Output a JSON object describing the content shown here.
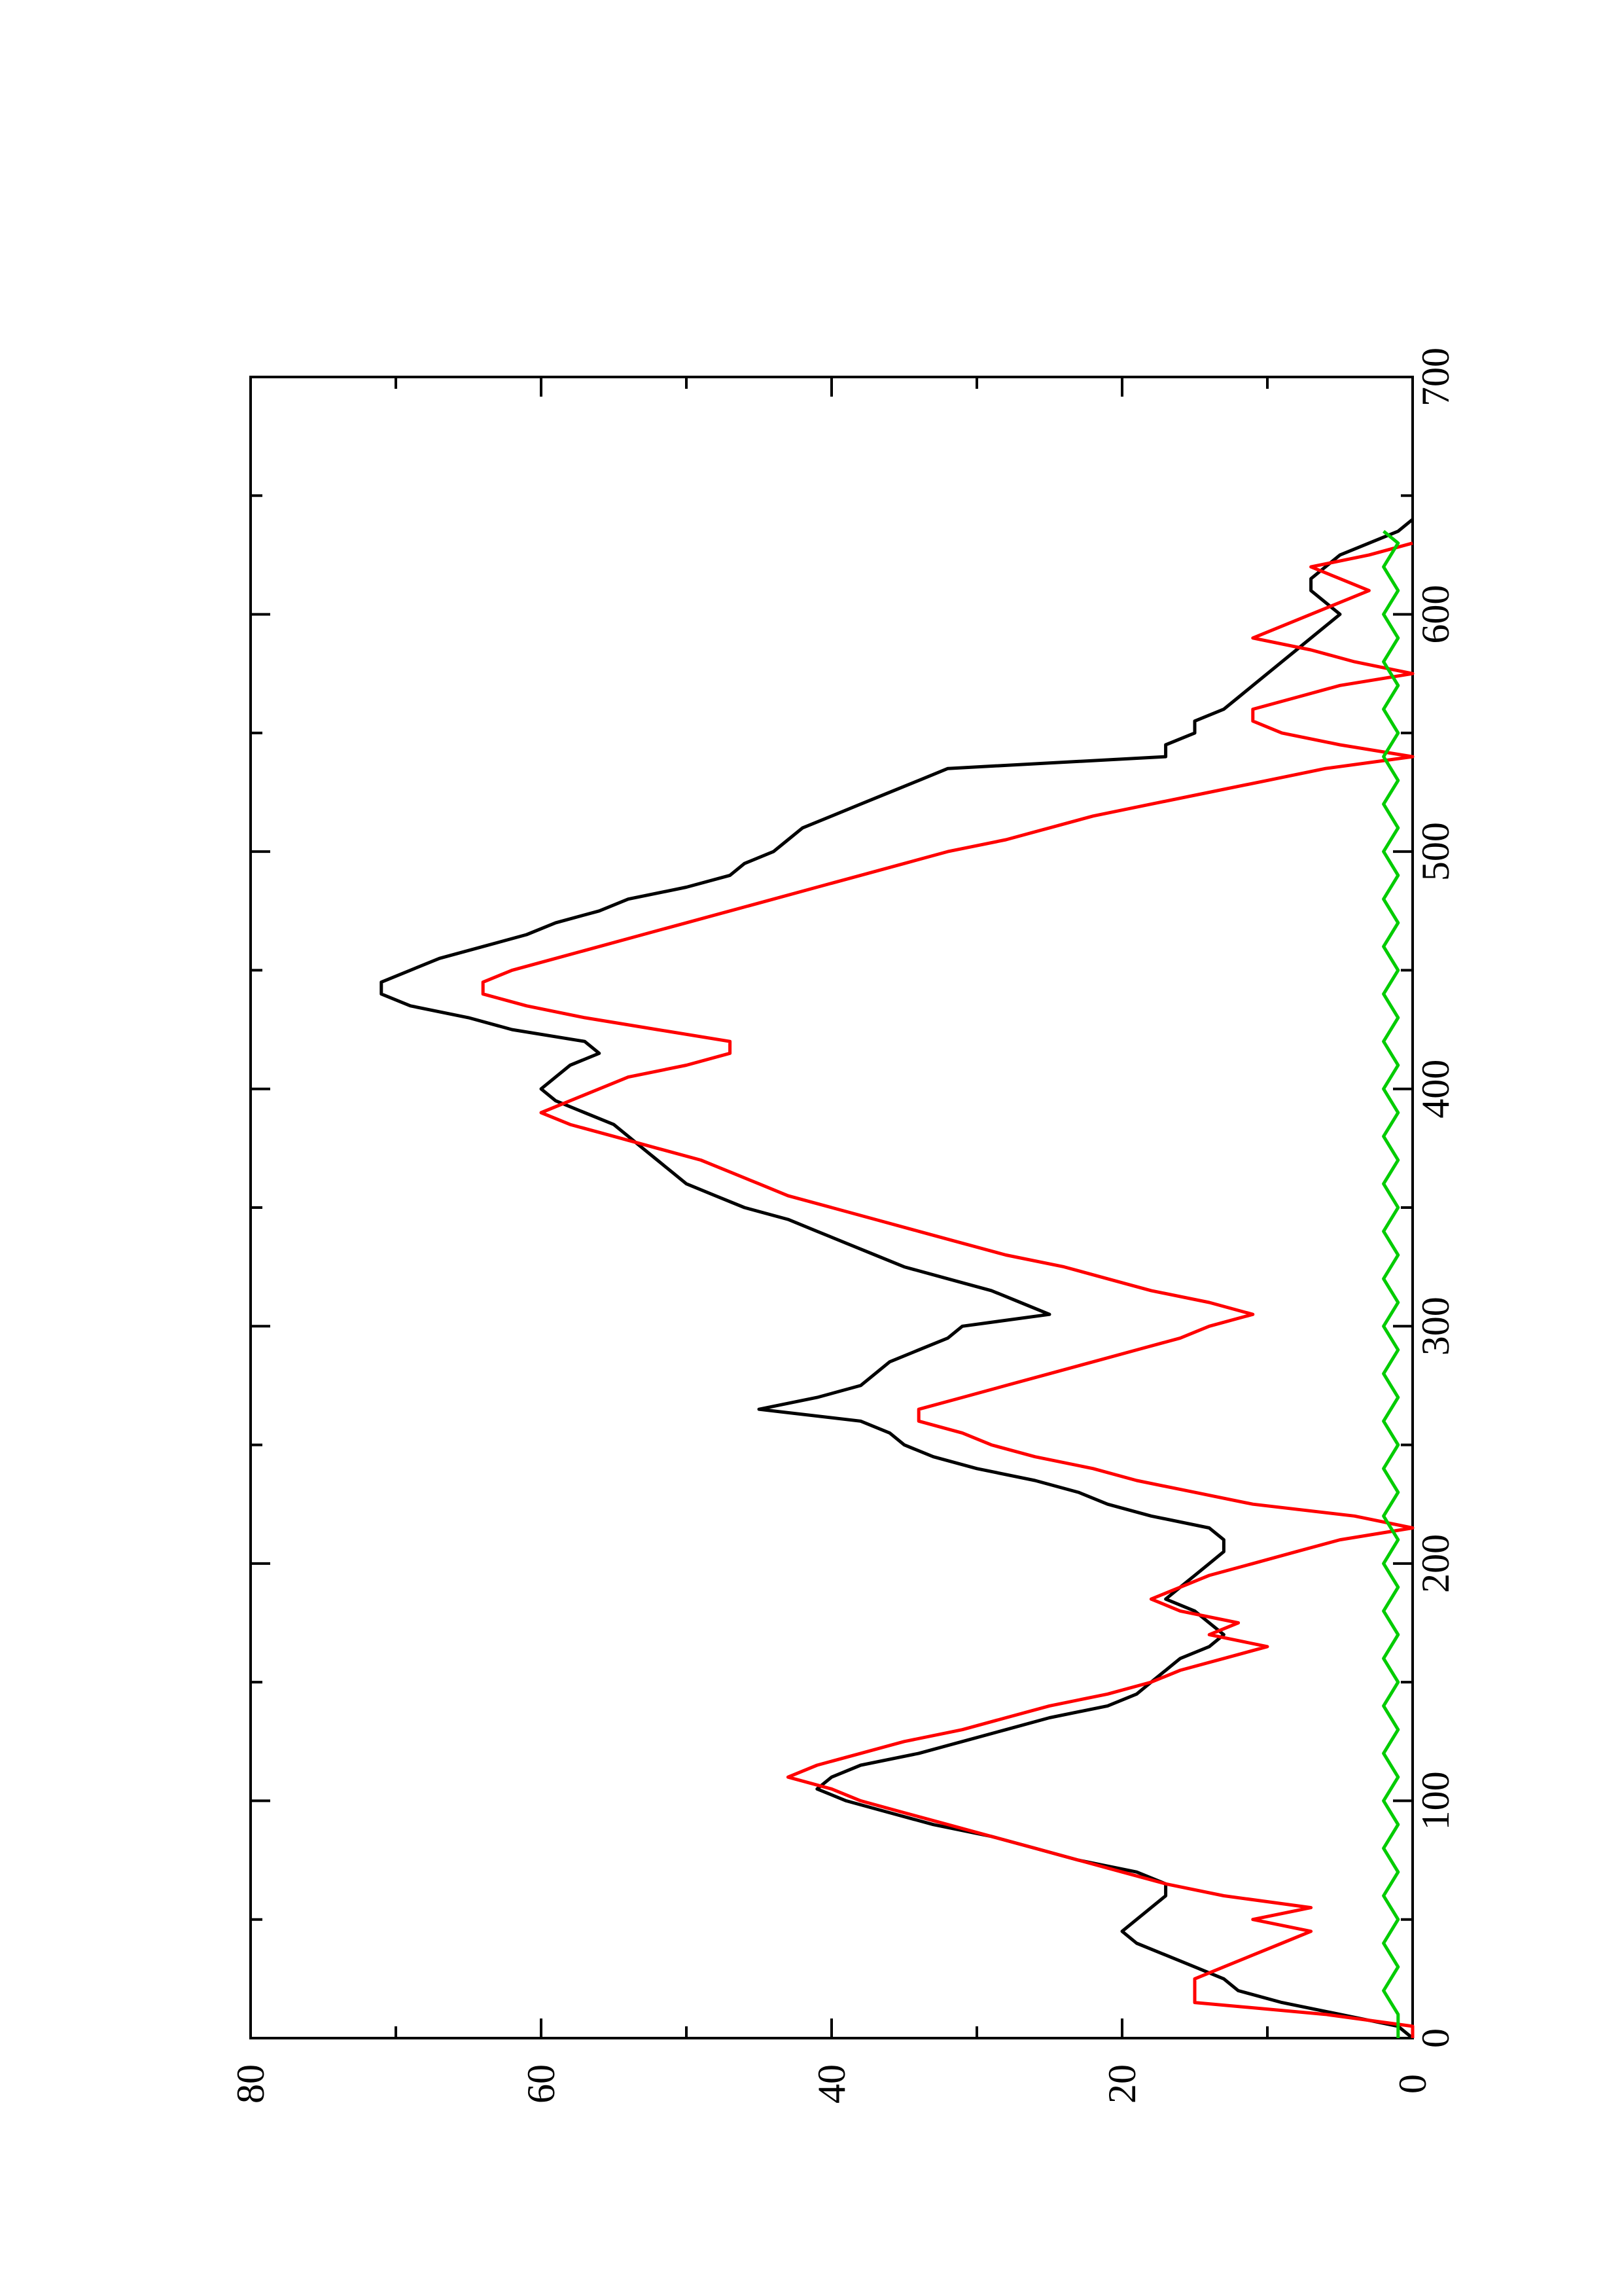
{
  "chart_data": {
    "type": "line",
    "orientation": "rotated-90-ccw",
    "title": "",
    "xlabel": "",
    "ylabel": "",
    "xlim": [
      0,
      700
    ],
    "ylim": [
      0,
      80
    ],
    "x_ticks": [
      "0",
      "100",
      "200",
      "300",
      "400",
      "500",
      "600",
      "700"
    ],
    "y_ticks": [
      "0",
      "20",
      "40",
      "60",
      "80"
    ],
    "grid": false,
    "legend": "none",
    "series": [
      {
        "color": "#000000",
        "points": [
          [
            0,
            0
          ],
          [
            5,
            1
          ],
          [
            10,
            5
          ],
          [
            15,
            9
          ],
          [
            20,
            12
          ],
          [
            25,
            13
          ],
          [
            30,
            15
          ],
          [
            35,
            17
          ],
          [
            40,
            19
          ],
          [
            45,
            20
          ],
          [
            50,
            19
          ],
          [
            55,
            18
          ],
          [
            60,
            17
          ],
          [
            65,
            17
          ],
          [
            70,
            19
          ],
          [
            75,
            23
          ],
          [
            80,
            26
          ],
          [
            85,
            29
          ],
          [
            90,
            33
          ],
          [
            95,
            36
          ],
          [
            100,
            39
          ],
          [
            105,
            41
          ],
          [
            110,
            40
          ],
          [
            115,
            38
          ],
          [
            120,
            34
          ],
          [
            125,
            31
          ],
          [
            130,
            28
          ],
          [
            135,
            25
          ],
          [
            140,
            21
          ],
          [
            145,
            19
          ],
          [
            150,
            18
          ],
          [
            155,
            17
          ],
          [
            160,
            16
          ],
          [
            165,
            14
          ],
          [
            170,
            13
          ],
          [
            175,
            14
          ],
          [
            180,
            15
          ],
          [
            185,
            17
          ],
          [
            190,
            16
          ],
          [
            195,
            15
          ],
          [
            200,
            14
          ],
          [
            205,
            13
          ],
          [
            210,
            13
          ],
          [
            215,
            14
          ],
          [
            220,
            18
          ],
          [
            225,
            21
          ],
          [
            230,
            23
          ],
          [
            235,
            26
          ],
          [
            240,
            30
          ],
          [
            245,
            33
          ],
          [
            250,
            35
          ],
          [
            255,
            36
          ],
          [
            260,
            38
          ],
          [
            265,
            45
          ],
          [
            270,
            41
          ],
          [
            275,
            38
          ],
          [
            280,
            37
          ],
          [
            285,
            36
          ],
          [
            290,
            34
          ],
          [
            295,
            32
          ],
          [
            300,
            31
          ],
          [
            305,
            25
          ],
          [
            310,
            27
          ],
          [
            315,
            29
          ],
          [
            320,
            32
          ],
          [
            325,
            35
          ],
          [
            330,
            37
          ],
          [
            335,
            39
          ],
          [
            340,
            41
          ],
          [
            345,
            43
          ],
          [
            350,
            46
          ],
          [
            355,
            48
          ],
          [
            360,
            50
          ],
          [
            365,
            51
          ],
          [
            370,
            52
          ],
          [
            375,
            53
          ],
          [
            380,
            54
          ],
          [
            385,
            55
          ],
          [
            390,
            57
          ],
          [
            395,
            59
          ],
          [
            400,
            60
          ],
          [
            405,
            59
          ],
          [
            410,
            58
          ],
          [
            415,
            56
          ],
          [
            420,
            57
          ],
          [
            425,
            62
          ],
          [
            430,
            65
          ],
          [
            435,
            69
          ],
          [
            440,
            71
          ],
          [
            445,
            71
          ],
          [
            450,
            69
          ],
          [
            455,
            67
          ],
          [
            460,
            64
          ],
          [
            465,
            61
          ],
          [
            470,
            59
          ],
          [
            475,
            56
          ],
          [
            480,
            54
          ],
          [
            485,
            50
          ],
          [
            490,
            47
          ],
          [
            495,
            46
          ],
          [
            500,
            44
          ],
          [
            505,
            43
          ],
          [
            510,
            42
          ],
          [
            515,
            40
          ],
          [
            520,
            38
          ],
          [
            525,
            36
          ],
          [
            530,
            34
          ],
          [
            535,
            32
          ],
          [
            540,
            17
          ],
          [
            545,
            17
          ],
          [
            550,
            15
          ],
          [
            555,
            15
          ],
          [
            560,
            13
          ],
          [
            565,
            12
          ],
          [
            570,
            11
          ],
          [
            575,
            10
          ],
          [
            580,
            9
          ],
          [
            585,
            8
          ],
          [
            590,
            7
          ],
          [
            595,
            6
          ],
          [
            600,
            5
          ],
          [
            605,
            6
          ],
          [
            610,
            7
          ],
          [
            615,
            7
          ],
          [
            620,
            6
          ],
          [
            625,
            5
          ],
          [
            630,
            3
          ],
          [
            635,
            1
          ],
          [
            640,
            0
          ]
        ]
      },
      {
        "color": "#ff0000",
        "points": [
          [
            0,
            0
          ],
          [
            5,
            0
          ],
          [
            10,
            6
          ],
          [
            15,
            15
          ],
          [
            25,
            15
          ],
          [
            30,
            13
          ],
          [
            35,
            11
          ],
          [
            40,
            9
          ],
          [
            45,
            7
          ],
          [
            50,
            11
          ],
          [
            55,
            7
          ],
          [
            60,
            13
          ],
          [
            65,
            17
          ],
          [
            70,
            20
          ],
          [
            75,
            23
          ],
          [
            80,
            26
          ],
          [
            85,
            29
          ],
          [
            90,
            32
          ],
          [
            95,
            35
          ],
          [
            100,
            38
          ],
          [
            105,
            40
          ],
          [
            110,
            43
          ],
          [
            115,
            41
          ],
          [
            120,
            38
          ],
          [
            125,
            35
          ],
          [
            130,
            31
          ],
          [
            135,
            28
          ],
          [
            140,
            25
          ],
          [
            145,
            21
          ],
          [
            150,
            18
          ],
          [
            155,
            16
          ],
          [
            160,
            13
          ],
          [
            165,
            10
          ],
          [
            170,
            14
          ],
          [
            175,
            12
          ],
          [
            180,
            16
          ],
          [
            185,
            18
          ],
          [
            190,
            16
          ],
          [
            195,
            14
          ],
          [
            200,
            11
          ],
          [
            205,
            8
          ],
          [
            210,
            5
          ],
          [
            215,
            0
          ],
          [
            220,
            4
          ],
          [
            225,
            11
          ],
          [
            230,
            15
          ],
          [
            235,
            19
          ],
          [
            240,
            22
          ],
          [
            245,
            26
          ],
          [
            250,
            29
          ],
          [
            255,
            31
          ],
          [
            260,
            34
          ],
          [
            265,
            34
          ],
          [
            270,
            31
          ],
          [
            275,
            28
          ],
          [
            280,
            25
          ],
          [
            285,
            22
          ],
          [
            290,
            19
          ],
          [
            295,
            16
          ],
          [
            300,
            14
          ],
          [
            305,
            11
          ],
          [
            310,
            14
          ],
          [
            315,
            18
          ],
          [
            320,
            21
          ],
          [
            325,
            24
          ],
          [
            330,
            28
          ],
          [
            335,
            31
          ],
          [
            340,
            34
          ],
          [
            345,
            37
          ],
          [
            350,
            40
          ],
          [
            355,
            43
          ],
          [
            360,
            45
          ],
          [
            365,
            47
          ],
          [
            370,
            49
          ],
          [
            375,
            52
          ],
          [
            380,
            55
          ],
          [
            385,
            58
          ],
          [
            390,
            60
          ],
          [
            395,
            58
          ],
          [
            400,
            56
          ],
          [
            405,
            54
          ],
          [
            410,
            50
          ],
          [
            415,
            47
          ],
          [
            420,
            47
          ],
          [
            425,
            52
          ],
          [
            430,
            57
          ],
          [
            435,
            61
          ],
          [
            440,
            64
          ],
          [
            445,
            64
          ],
          [
            450,
            62
          ],
          [
            455,
            59
          ],
          [
            460,
            56
          ],
          [
            465,
            53
          ],
          [
            470,
            50
          ],
          [
            475,
            47
          ],
          [
            480,
            44
          ],
          [
            485,
            41
          ],
          [
            490,
            38
          ],
          [
            495,
            35
          ],
          [
            500,
            32
          ],
          [
            505,
            28
          ],
          [
            510,
            25
          ],
          [
            515,
            22
          ],
          [
            520,
            18
          ],
          [
            525,
            14
          ],
          [
            530,
            10
          ],
          [
            535,
            6
          ],
          [
            540,
            0
          ],
          [
            545,
            5
          ],
          [
            550,
            9
          ],
          [
            555,
            11
          ],
          [
            560,
            11
          ],
          [
            565,
            8
          ],
          [
            570,
            5
          ],
          [
            575,
            0
          ],
          [
            580,
            4
          ],
          [
            585,
            7
          ],
          [
            590,
            11
          ],
          [
            595,
            9
          ],
          [
            600,
            7
          ],
          [
            605,
            5
          ],
          [
            610,
            3
          ],
          [
            615,
            5
          ],
          [
            620,
            7
          ],
          [
            625,
            3
          ],
          [
            630,
            0
          ]
        ]
      },
      {
        "color": "#00cc00",
        "points": [
          [
            0,
            1
          ],
          [
            10,
            1
          ],
          [
            20,
            2
          ],
          [
            30,
            1
          ],
          [
            40,
            2
          ],
          [
            50,
            1
          ],
          [
            60,
            2
          ],
          [
            70,
            1
          ],
          [
            80,
            2
          ],
          [
            90,
            1
          ],
          [
            100,
            2
          ],
          [
            110,
            1
          ],
          [
            120,
            2
          ],
          [
            130,
            1
          ],
          [
            140,
            2
          ],
          [
            150,
            1
          ],
          [
            160,
            2
          ],
          [
            170,
            1
          ],
          [
            180,
            2
          ],
          [
            190,
            1
          ],
          [
            200,
            2
          ],
          [
            210,
            1
          ],
          [
            220,
            2
          ],
          [
            230,
            1
          ],
          [
            240,
            2
          ],
          [
            250,
            1
          ],
          [
            260,
            2
          ],
          [
            270,
            1
          ],
          [
            280,
            2
          ],
          [
            290,
            1
          ],
          [
            300,
            2
          ],
          [
            310,
            1
          ],
          [
            320,
            2
          ],
          [
            330,
            1
          ],
          [
            340,
            2
          ],
          [
            350,
            1
          ],
          [
            360,
            2
          ],
          [
            370,
            1
          ],
          [
            380,
            2
          ],
          [
            390,
            1
          ],
          [
            400,
            2
          ],
          [
            410,
            1
          ],
          [
            420,
            2
          ],
          [
            430,
            1
          ],
          [
            440,
            2
          ],
          [
            450,
            1
          ],
          [
            460,
            2
          ],
          [
            470,
            1
          ],
          [
            480,
            2
          ],
          [
            490,
            1
          ],
          [
            500,
            2
          ],
          [
            510,
            1
          ],
          [
            520,
            2
          ],
          [
            530,
            1
          ],
          [
            540,
            2
          ],
          [
            550,
            1
          ],
          [
            560,
            2
          ],
          [
            570,
            1
          ],
          [
            580,
            2
          ],
          [
            590,
            1
          ],
          [
            600,
            2
          ],
          [
            610,
            1
          ],
          [
            620,
            2
          ],
          [
            630,
            1
          ],
          [
            635,
            2
          ]
        ]
      }
    ]
  }
}
